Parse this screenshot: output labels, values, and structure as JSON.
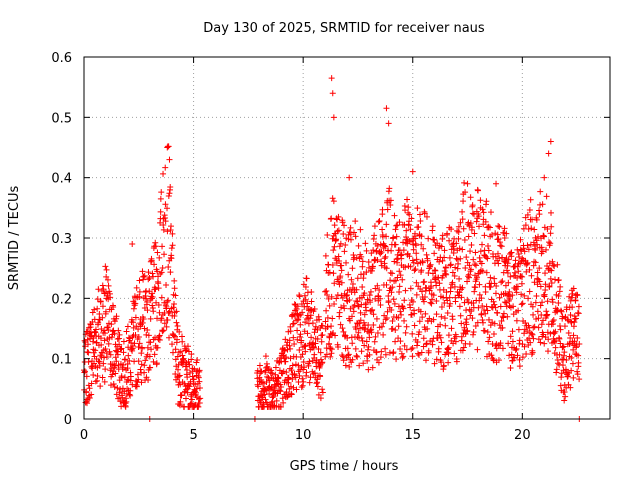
{
  "chart_data": {
    "type": "scatter",
    "title": "Day 130 of 2025, SRMTID for receiver naus",
    "xlabel": "GPS time / hours",
    "ylabel": "SRMTID / TECUs",
    "xlim": [
      0,
      24
    ],
    "ylim": [
      0,
      0.6
    ],
    "x_ticks": [
      0,
      5,
      10,
      15,
      20
    ],
    "x_tick_labels": [
      "0",
      "5",
      "10",
      "15",
      "20"
    ],
    "y_ticks": [
      0,
      0.1,
      0.2,
      0.3,
      0.4,
      0.5,
      0.6
    ],
    "y_tick_labels": [
      "0",
      "0.1",
      "0.2",
      "0.3",
      "0.4",
      "0.5",
      "0.6"
    ],
    "grid": true,
    "marker": "plus",
    "color": "#ff0000",
    "series": [
      {
        "name": "SRMTID",
        "segments": [
          {
            "x": [
              0.0,
              0.5,
              1.0,
              1.5,
              1.8,
              2.1,
              2.5,
              3.0,
              3.3,
              3.6,
              3.8,
              4.1,
              4.3,
              4.6,
              5.0,
              5.3
            ],
            "y": [
              0.07,
              0.13,
              0.16,
              0.1,
              0.07,
              0.1,
              0.15,
              0.16,
              0.19,
              0.27,
              0.33,
              0.16,
              0.09,
              0.07,
              0.06,
              0.05
            ]
          },
          {
            "x": [
              7.9,
              8.2,
              8.6,
              9.0,
              9.3,
              9.6,
              9.9,
              10.2,
              10.6,
              10.9
            ],
            "y": [
              0.04,
              0.06,
              0.05,
              0.06,
              0.09,
              0.12,
              0.14,
              0.15,
              0.1,
              0.1
            ]
          },
          {
            "x": [
              11.0,
              11.3,
              11.6,
              12.0,
              12.4,
              12.8,
              13.2,
              13.6,
              13.9,
              14.3,
              14.7,
              15.0,
              15.4,
              15.8,
              16.2,
              16.6,
              17.0,
              17.4,
              17.8,
              18.2,
              18.6,
              19.0,
              19.4,
              19.8,
              20.2,
              20.6,
              21.0,
              21.3,
              21.6,
              21.9,
              22.2,
              22.6
            ],
            "y": [
              0.18,
              0.24,
              0.22,
              0.2,
              0.21,
              0.19,
              0.2,
              0.22,
              0.25,
              0.21,
              0.24,
              0.22,
              0.23,
              0.21,
              0.19,
              0.2,
              0.21,
              0.26,
              0.25,
              0.24,
              0.22,
              0.21,
              0.2,
              0.19,
              0.23,
              0.24,
              0.25,
              0.22,
              0.16,
              0.1,
              0.13,
              0.14
            ]
          }
        ],
        "spikes": [
          {
            "x": 1.0,
            "y": 0.21
          },
          {
            "x": 2.2,
            "y": 0.29
          },
          {
            "x": 3.8,
            "y": 0.45
          },
          {
            "x": 3.9,
            "y": 0.43
          },
          {
            "x": 11.3,
            "y": 0.565
          },
          {
            "x": 11.35,
            "y": 0.54
          },
          {
            "x": 11.4,
            "y": 0.5
          },
          {
            "x": 12.1,
            "y": 0.4
          },
          {
            "x": 13.8,
            "y": 0.515
          },
          {
            "x": 13.9,
            "y": 0.49
          },
          {
            "x": 15.0,
            "y": 0.41
          },
          {
            "x": 17.5,
            "y": 0.39
          },
          {
            "x": 18.8,
            "y": 0.39
          },
          {
            "x": 21.0,
            "y": 0.4
          },
          {
            "x": 21.3,
            "y": 0.46
          },
          {
            "x": 21.2,
            "y": 0.44
          }
        ],
        "zero_markers": [
          3.0,
          7.8,
          22.6
        ]
      }
    ]
  }
}
